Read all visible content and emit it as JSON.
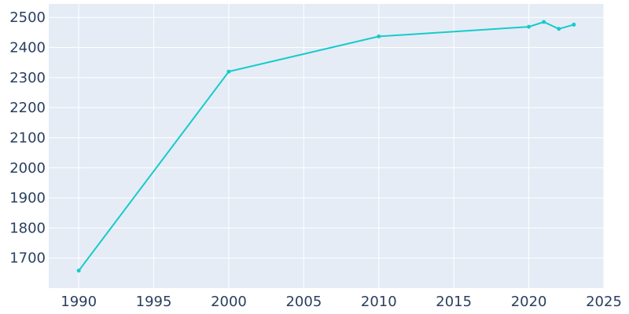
{
  "chart_data": {
    "type": "line",
    "title": "",
    "xlabel": "",
    "ylabel": "",
    "x": [
      1990,
      2000,
      2010,
      2020,
      2021,
      2022,
      2023
    ],
    "series": [
      {
        "values": [
          1658,
          2320,
          2437,
          2469,
          2485,
          2462,
          2476
        ]
      }
    ],
    "xlim": [
      1988,
      2025
    ],
    "ylim": [
      1600,
      2545
    ],
    "x_ticks": [
      1990,
      1995,
      2000,
      2005,
      2010,
      2015,
      2020,
      2025
    ],
    "y_ticks": [
      1700,
      1800,
      1900,
      2000,
      2100,
      2200,
      2300,
      2400,
      2500
    ],
    "grid": true,
    "legend": "none"
  },
  "colors": {
    "plot_background": "#e5ecf6",
    "gridline": "#ffffff",
    "series": "#17cbcb",
    "tick_text": "#2a3f5f"
  }
}
